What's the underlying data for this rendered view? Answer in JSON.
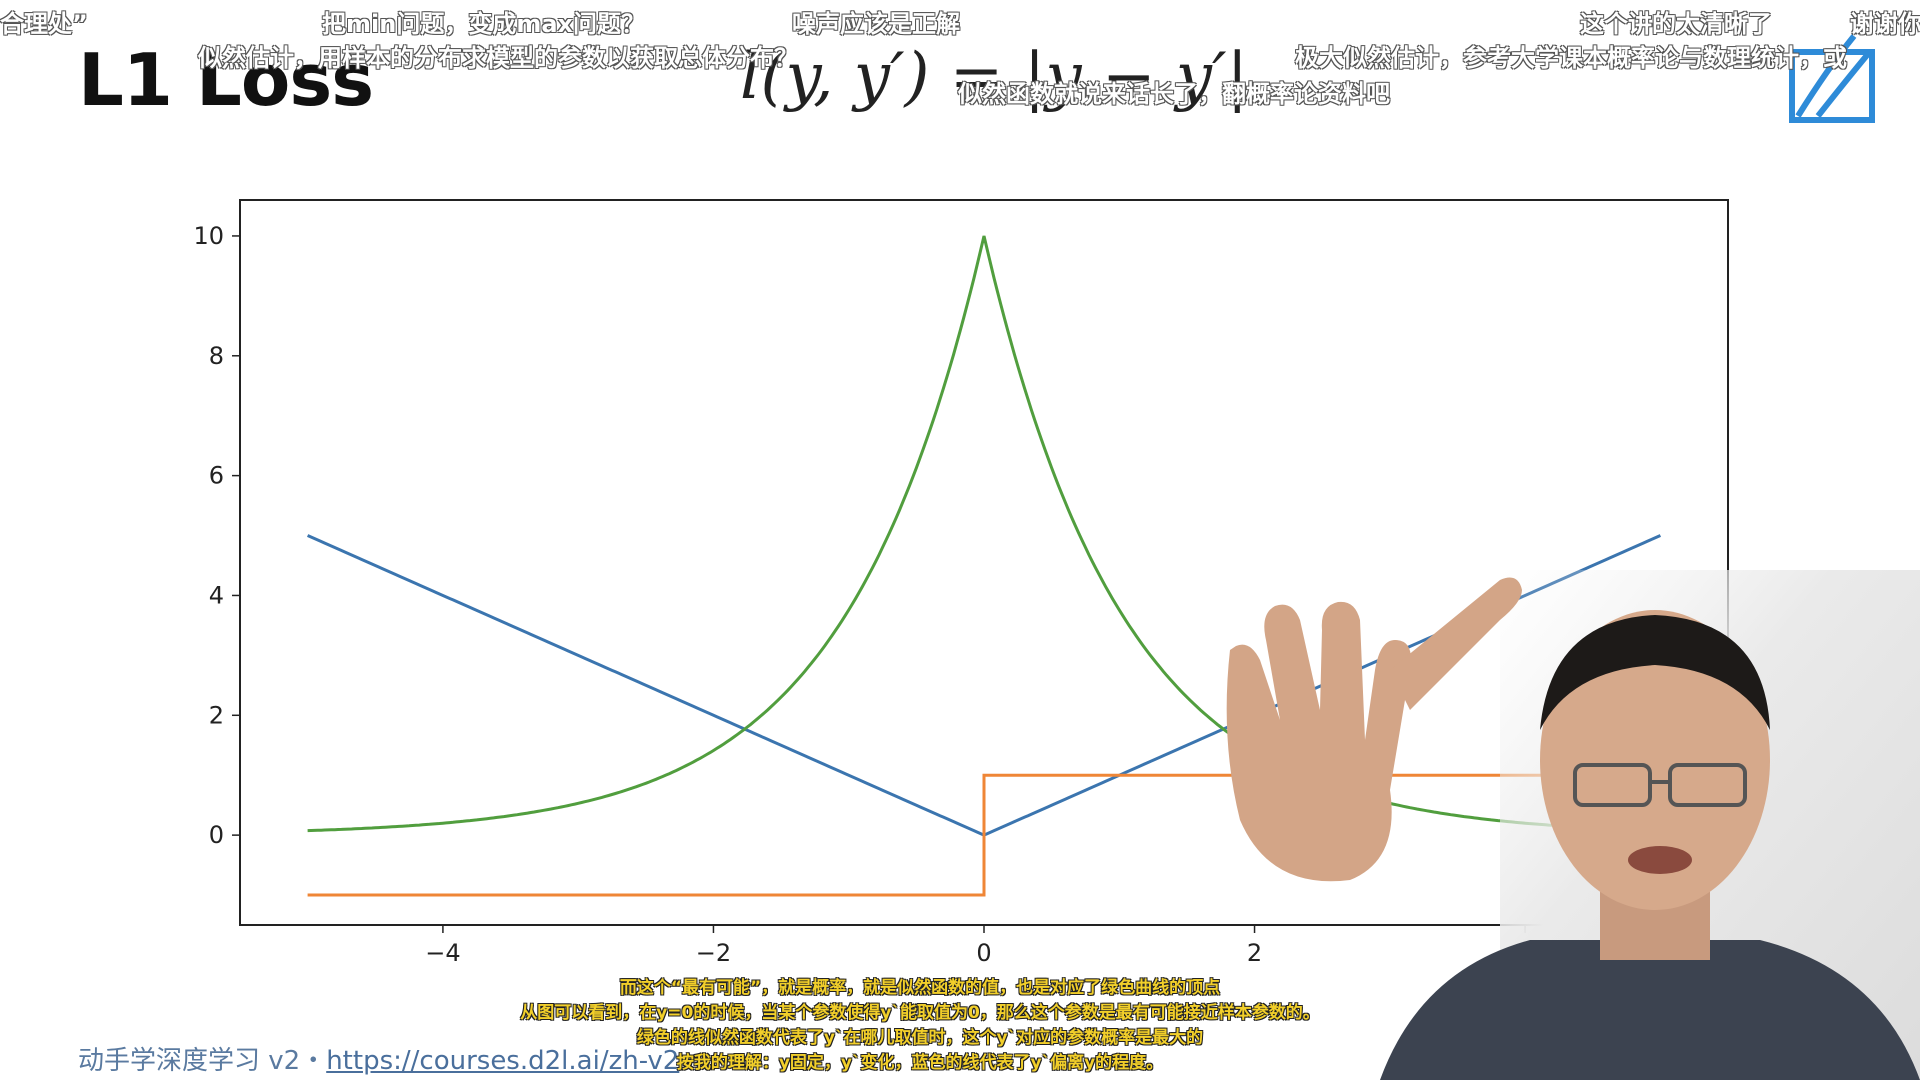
{
  "slide": {
    "title": "L1 Loss",
    "formula": "l(y, y′) = |y − y′|",
    "footer_prefix": "动手学深度学习 v2・",
    "footer_link": "https://courses.d2l.ai/zh-v2"
  },
  "danmaku": [
    "合理处”",
    "把min问题，变成max问题？",
    "噪声应该是正解",
    "这个讲的太清晰了",
    "谢谢你",
    "似然估计，用样本的分布求模型的参数以获取总体分布？",
    "极大似然估计，参考大学课本概率论与数理统计，或",
    "似然函数就说来话长了，翻概率论资料吧"
  ],
  "subtitles": [
    "而这个“最有可能”，就是概率，就是似然函数的值，也是对应了绿色曲线的顶点",
    "从图可以看到，在y=0的时候，当某个参数使得y`能取值为0，那么这个参数是最有可能接近样本参数的。",
    "绿色的线似然函数代表了y`在哪儿取值时，这个y`对应的参数概率是最大的",
    "按我的理解：y固定，y`变化，蓝色的线代表了y`偏离y的程度。"
  ],
  "colors": {
    "blue": "#3b75af",
    "orange": "#ef8636",
    "green": "#519e3e",
    "subtitle": "#f2cf2a"
  },
  "chart_data": {
    "type": "line",
    "title": "",
    "xlabel": "",
    "ylabel": "",
    "xlim": [
      -5.5,
      5.5
    ],
    "ylim": [
      -1.5,
      10.6
    ],
    "xticks": [
      -4,
      -2,
      0,
      2,
      4
    ],
    "yticks": [
      0,
      2,
      4,
      6,
      8,
      10
    ],
    "grid": false,
    "series": [
      {
        "color": "blue",
        "function": "abs",
        "x": [
          -5,
          0,
          5
        ],
        "y": [
          5,
          0,
          5
        ]
      },
      {
        "color": "orange",
        "function": "sign",
        "x": [
          -5,
          0,
          0,
          5
        ],
        "y": [
          -1,
          -1,
          1,
          1
        ]
      },
      {
        "color": "green",
        "function": "exp_neg_abs",
        "x": [
          -5,
          0,
          5
        ],
        "y": [
          0.07,
          10,
          0.07
        ]
      }
    ]
  }
}
